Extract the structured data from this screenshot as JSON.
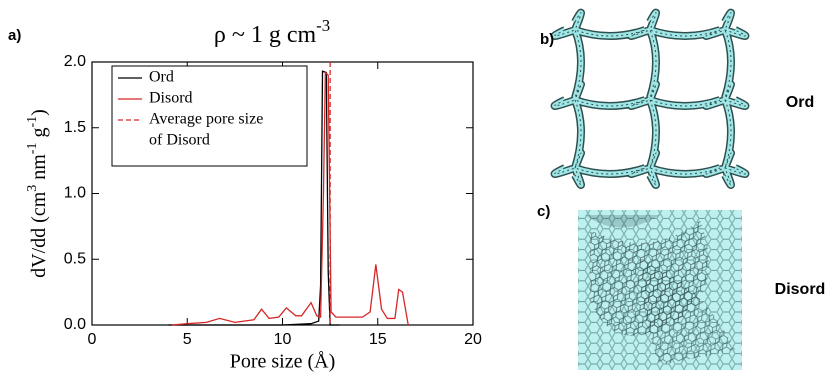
{
  "chart_data": {
    "type": "line",
    "panel_label": "a)",
    "title": [
      {
        "text": "ρ ~ 1 g cm"
      },
      {
        "text": "-3",
        "sup": true
      }
    ],
    "xlabel": "Pore size (Å)",
    "ylabel": [
      {
        "text": "dV/dd (cm"
      },
      {
        "text": "3",
        "sup": true
      },
      {
        "text": " nm"
      },
      {
        "text": "-1",
        "sup": true
      },
      {
        "text": " g"
      },
      {
        "text": "-1",
        "sup": true
      },
      {
        "text": ")"
      }
    ],
    "xlim": [
      0,
      20
    ],
    "xticks": [
      0,
      5,
      10,
      15,
      20
    ],
    "ylim": [
      0,
      2.0
    ],
    "yticks": [
      {
        "value": 0,
        "label": "0.0"
      },
      {
        "value": 0.5,
        "label": "0.5"
      },
      {
        "value": 1.0,
        "label": "1.0"
      },
      {
        "value": 1.5,
        "label": "1.5"
      },
      {
        "value": 2.0,
        "label": "2.0"
      }
    ],
    "series": [
      {
        "name": "Ord",
        "color": "#000000",
        "x": [
          4.0,
          8.0,
          10.0,
          11.5,
          11.9,
          12.0,
          12.1,
          12.3,
          12.4,
          12.5,
          13.0
        ],
        "values": [
          0.0,
          0.0,
          0.0,
          0.01,
          0.03,
          0.3,
          1.93,
          1.92,
          0.4,
          0.0,
          0.0
        ]
      },
      {
        "name": "Disord",
        "color": "#d62728",
        "x": [
          4.2,
          5.0,
          6.0,
          6.7,
          7.5,
          8.5,
          8.9,
          9.3,
          9.8,
          10.2,
          10.7,
          11.0,
          11.5,
          11.8,
          12.0,
          12.15,
          12.25,
          12.4,
          12.55,
          12.8,
          13.5,
          14.2,
          14.6,
          14.9,
          15.2,
          15.5,
          15.9,
          16.1,
          16.3,
          16.6
        ],
        "values": [
          0.0,
          0.01,
          0.02,
          0.05,
          0.02,
          0.04,
          0.12,
          0.05,
          0.06,
          0.13,
          0.07,
          0.07,
          0.17,
          0.07,
          0.06,
          1.0,
          1.92,
          1.9,
          0.1,
          0.06,
          0.06,
          0.06,
          0.1,
          0.46,
          0.12,
          0.05,
          0.05,
          0.27,
          0.25,
          0.0
        ]
      }
    ],
    "vlines": [
      {
        "name": [
          "Average pore size",
          "of Disord"
        ],
        "color": "#d62728",
        "x": 12.5,
        "dash": true
      }
    ]
  },
  "panels": [
    {
      "label": "b)",
      "caption": "Ord"
    },
    {
      "label": "c)",
      "caption": "Disord"
    }
  ]
}
